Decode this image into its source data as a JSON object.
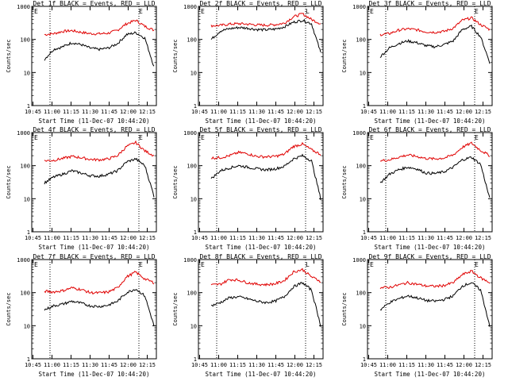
{
  "chart_data": [
    {
      "type": "line",
      "title": "Det  1f BLACK = Events, RED = LLD",
      "xlabel": "Start Time (11-Dec-07 10:44:20)",
      "ylabel": "Counts/sec",
      "x_ticks": [
        "10:45",
        "11:00",
        "11:15",
        "11:30",
        "11:45",
        "12:00",
        "12:15"
      ],
      "y_ticks": [
        "1",
        "10",
        "100",
        "1000"
      ],
      "y_scale": "log",
      "ylim": [
        1,
        1000
      ],
      "markers": [
        "E",
        "E"
      ],
      "series": [
        {
          "color": "#e00000",
          "values": [
            140,
            150,
            175,
            185,
            165,
            150,
            148,
            155,
            190,
            300,
            380,
            250,
            190
          ]
        },
        {
          "color": "#000000",
          "values": [
            25,
            50,
            60,
            80,
            70,
            55,
            50,
            55,
            75,
            140,
            160,
            110,
            15
          ]
        }
      ]
    },
    {
      "type": "line",
      "title": "Det  2f BLACK = Events, RED = LLD",
      "xlabel": "Start Time (11-Dec-07 10:44:20)",
      "ylabel": "Counts/sec",
      "x_ticks": [
        "10:45",
        "11:00",
        "11:15",
        "11:30",
        "11:45",
        "12:00",
        "12:15"
      ],
      "y_ticks": [
        "1",
        "10",
        "100",
        "1000"
      ],
      "y_scale": "log",
      "ylim": [
        1,
        1000
      ],
      "markers": [
        "E",
        "L"
      ],
      "series": [
        {
          "color": "#e00000",
          "values": [
            260,
            265,
            290,
            300,
            290,
            275,
            270,
            280,
            310,
            480,
            600,
            400,
            300
          ]
        },
        {
          "color": "#000000",
          "values": [
            100,
            180,
            210,
            230,
            220,
            200,
            195,
            205,
            240,
            330,
            380,
            300,
            40
          ]
        }
      ]
    },
    {
      "type": "line",
      "title": "Det  3f BLACK = Events, RED = LLD",
      "xlabel": "Start Time (11-Dec-07 10:44:20)",
      "ylabel": "Counts/sec",
      "x_ticks": [
        "10:45",
        "11:00",
        "11:15",
        "11:30",
        "11:45",
        "12:00",
        "12:15"
      ],
      "y_ticks": [
        "1",
        "10",
        "100",
        "1000"
      ],
      "y_scale": "log",
      "ylim": [
        1,
        1000
      ],
      "markers": [
        "E",
        "E"
      ],
      "series": [
        {
          "color": "#e00000",
          "values": [
            140,
            150,
            190,
            210,
            195,
            170,
            165,
            175,
            220,
            380,
            450,
            280,
            200
          ]
        },
        {
          "color": "#000000",
          "values": [
            30,
            55,
            75,
            90,
            80,
            65,
            60,
            70,
            90,
            200,
            250,
            120,
            20
          ]
        }
      ]
    },
    {
      "type": "line",
      "title": "Det  4f BLACK = Events, RED = LLD",
      "xlabel": "Start Time (11-Dec-07 10:44:20)",
      "ylabel": "Counts/sec",
      "x_ticks": [
        "10:45",
        "11:00",
        "11:15",
        "11:30",
        "11:45",
        "12:00",
        "12:15"
      ],
      "y_ticks": [
        "1",
        "10",
        "100",
        "1000"
      ],
      "y_scale": "log",
      "ylim": [
        1,
        1000
      ],
      "markers": [
        "E",
        "E"
      ],
      "series": [
        {
          "color": "#e00000",
          "values": [
            140,
            145,
            165,
            190,
            175,
            155,
            150,
            160,
            200,
            380,
            500,
            280,
            200
          ]
        },
        {
          "color": "#000000",
          "values": [
            30,
            45,
            55,
            70,
            60,
            50,
            48,
            55,
            70,
            130,
            160,
            100,
            12
          ]
        }
      ]
    },
    {
      "type": "line",
      "title": "Det  5f BLACK = Events, RED = LLD",
      "xlabel": "Start Time (11-Dec-07 10:44:20)",
      "ylabel": "Counts/sec",
      "x_ticks": [
        "10:45",
        "11:00",
        "11:15",
        "11:30",
        "11:45",
        "12:00",
        "12:15"
      ],
      "y_ticks": [
        "1",
        "10",
        "100",
        "1000"
      ],
      "y_scale": "log",
      "ylim": [
        1,
        1000
      ],
      "markers": [
        "E",
        "L"
      ],
      "series": [
        {
          "color": "#e00000",
          "values": [
            170,
            175,
            200,
            250,
            230,
            190,
            185,
            190,
            220,
            380,
            450,
            300,
            220
          ]
        },
        {
          "color": "#000000",
          "values": [
            40,
            70,
            85,
            100,
            90,
            80,
            75,
            80,
            95,
            160,
            200,
            140,
            10
          ]
        }
      ]
    },
    {
      "type": "line",
      "title": "Det  6f BLACK = Events, RED = LLD",
      "xlabel": "Start Time (11-Dec-07 10:44:20)",
      "ylabel": "Counts/sec",
      "x_ticks": [
        "10:45",
        "11:00",
        "11:15",
        "11:30",
        "11:45",
        "12:00",
        "12:15"
      ],
      "y_ticks": [
        "1",
        "10",
        "100",
        "1000"
      ],
      "y_scale": "log",
      "ylim": [
        1,
        1000
      ],
      "markers": [
        "E",
        "E"
      ],
      "series": [
        {
          "color": "#e00000",
          "values": [
            140,
            150,
            180,
            210,
            190,
            165,
            160,
            170,
            210,
            360,
            480,
            290,
            200
          ]
        },
        {
          "color": "#000000",
          "values": [
            30,
            55,
            75,
            90,
            80,
            60,
            58,
            65,
            90,
            150,
            180,
            110,
            10
          ]
        }
      ]
    },
    {
      "type": "line",
      "title": "Det  7f BLACK = Events, RED = LLD",
      "xlabel": "Start Time (11-Dec-07 10:44:20)",
      "ylabel": "Counts/sec",
      "x_ticks": [
        "10:45",
        "11:00",
        "11:15",
        "11:30",
        "11:45",
        "12:00",
        "12:15"
      ],
      "y_ticks": [
        "1",
        "10",
        "100",
        "1000"
      ],
      "y_scale": "log",
      "ylim": [
        1,
        1000
      ],
      "markers": [
        "E",
        "E"
      ],
      "series": [
        {
          "color": "#e00000",
          "values": [
            110,
            105,
            115,
            140,
            125,
            100,
            98,
            105,
            140,
            300,
            420,
            260,
            200
          ]
        },
        {
          "color": "#000000",
          "values": [
            30,
            40,
            45,
            55,
            48,
            40,
            38,
            42,
            55,
            100,
            130,
            80,
            10
          ]
        }
      ]
    },
    {
      "type": "line",
      "title": "Det  8f BLACK = Events, RED = LLD",
      "xlabel": "Start Time (11-Dec-07 10:44:20)",
      "ylabel": "Counts/sec",
      "x_ticks": [
        "10:45",
        "11:00",
        "11:15",
        "11:30",
        "11:45",
        "12:00",
        "12:15"
      ],
      "y_ticks": [
        "1",
        "10",
        "100",
        "1000"
      ],
      "y_scale": "log",
      "ylim": [
        1,
        1000
      ],
      "markers": [
        "E",
        "L"
      ],
      "series": [
        {
          "color": "#e00000",
          "values": [
            170,
            180,
            250,
            240,
            200,
            180,
            175,
            185,
            230,
            420,
            500,
            300,
            220
          ]
        },
        {
          "color": "#000000",
          "values": [
            40,
            50,
            70,
            75,
            65,
            55,
            50,
            55,
            75,
            150,
            200,
            120,
            10
          ]
        }
      ]
    },
    {
      "type": "line",
      "title": "Det  9f BLACK = Events, RED = LLD",
      "xlabel": "Start Time (11-Dec-07 10:44:20)",
      "ylabel": "Counts/sec",
      "x_ticks": [
        "10:45",
        "11:00",
        "11:15",
        "11:30",
        "11:45",
        "12:00",
        "12:15"
      ],
      "y_ticks": [
        "1",
        "10",
        "100",
        "1000"
      ],
      "y_scale": "log",
      "ylim": [
        1,
        1000
      ],
      "markers": [
        "E",
        "E"
      ],
      "series": [
        {
          "color": "#e00000",
          "values": [
            140,
            145,
            170,
            200,
            180,
            160,
            155,
            165,
            200,
            350,
            450,
            280,
            200
          ]
        },
        {
          "color": "#000000",
          "values": [
            30,
            50,
            65,
            80,
            70,
            58,
            55,
            62,
            80,
            160,
            200,
            120,
            10
          ]
        }
      ]
    }
  ]
}
